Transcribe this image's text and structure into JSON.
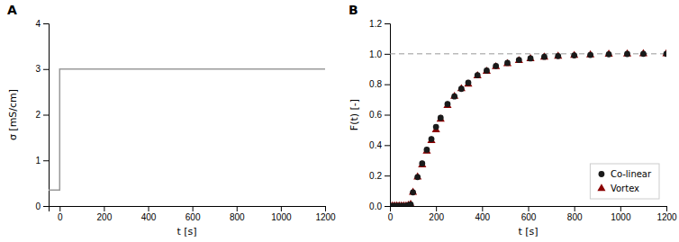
{
  "chart_data": [
    {
      "type": "line",
      "title": "A",
      "x": [
        -50,
        0,
        0,
        1200
      ],
      "values": [
        0.35,
        0.35,
        3.0,
        3.0
      ],
      "color": "#999999",
      "xlim": [
        -50,
        1200
      ],
      "ylim": [
        0.0,
        4.0
      ],
      "xticks": [
        0,
        200,
        400,
        600,
        800,
        1000,
        1200
      ],
      "yticks": [
        0,
        1,
        2,
        3,
        4
      ],
      "xlabel": "t [s]",
      "ylabel": "σ [mS/cm]",
      "grid": false
    },
    {
      "type": "scatter",
      "title": "B",
      "x": [
        10,
        20,
        30,
        40,
        50,
        60,
        70,
        80,
        90,
        100,
        120,
        140,
        160,
        180,
        200,
        220,
        250,
        280,
        310,
        340,
        380,
        420,
        460,
        510,
        560,
        610,
        670,
        730,
        800,
        870,
        950,
        1030,
        1100,
        1200
      ],
      "series": [
        {
          "name": "Co-linear",
          "color": "#1a1a1a",
          "marker": "circle",
          "values": [
            0.0,
            0.0,
            0.0,
            0.0,
            0.0,
            0.0,
            0.0,
            0.005,
            0.01,
            0.09,
            0.19,
            0.28,
            0.37,
            0.44,
            0.52,
            0.58,
            0.67,
            0.72,
            0.77,
            0.81,
            0.86,
            0.89,
            0.92,
            0.94,
            0.96,
            0.97,
            0.98,
            0.985,
            0.99,
            0.993,
            0.997,
            0.999,
            1.0,
            1.0
          ]
        },
        {
          "name": "Vortex",
          "color": "#8b0000",
          "marker": "triangle",
          "values": [
            0.0,
            0.0,
            0.0,
            0.0,
            0.0,
            0.0,
            0.0,
            0.005,
            0.01,
            0.09,
            0.19,
            0.27,
            0.36,
            0.43,
            0.5,
            0.57,
            0.66,
            0.72,
            0.77,
            0.8,
            0.855,
            0.885,
            0.915,
            0.935,
            0.955,
            0.968,
            0.978,
            0.984,
            0.989,
            0.993,
            0.997,
            0.999,
            1.0,
            1.0
          ]
        }
      ],
      "hlines": [
        {
          "value": 1.0,
          "color": "#999999",
          "line_style": "dashed"
        }
      ],
      "xlim": [
        0,
        1200
      ],
      "ylim": [
        0.0,
        1.2
      ],
      "xticks": [
        0,
        200,
        400,
        600,
        800,
        1000,
        1200
      ],
      "yticks": [
        {
          "value": 0.0,
          "label": "0.0"
        },
        0.2,
        0.4,
        0.6,
        0.8,
        {
          "value": 1.0,
          "label": "1.0"
        },
        1.2
      ],
      "xlabel": "t [s]",
      "ylabel": "F(t) [-]",
      "legend": "lower right",
      "grid": false
    }
  ]
}
